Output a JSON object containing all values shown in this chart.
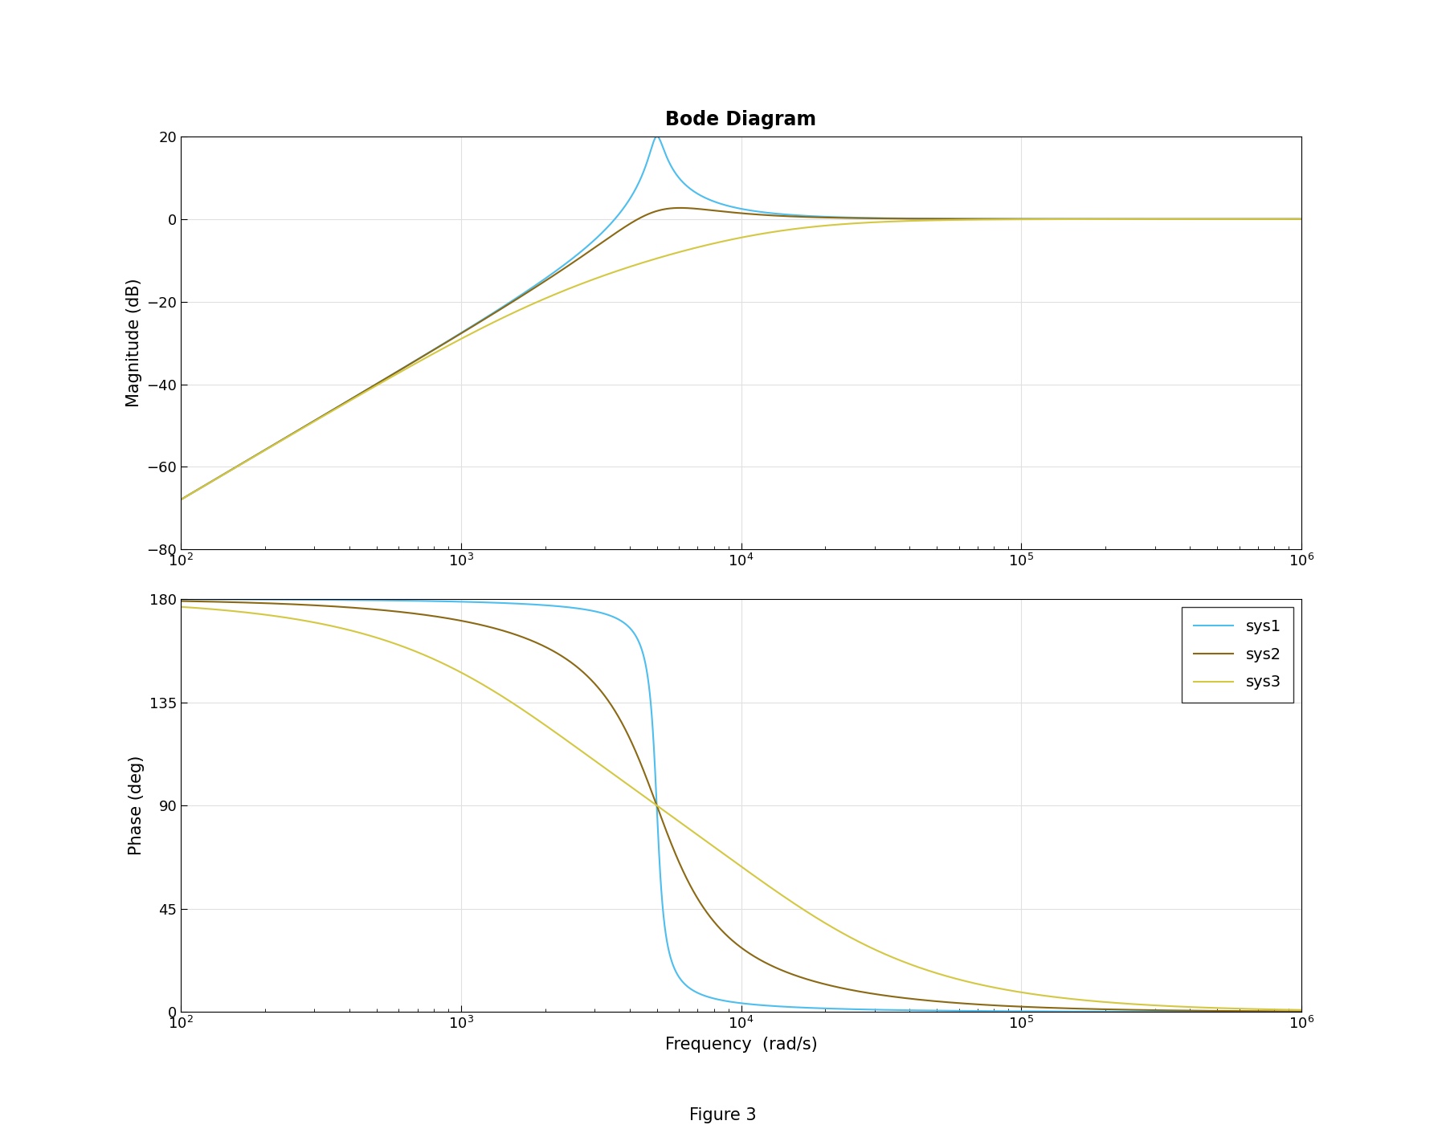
{
  "title": "Bode Diagram",
  "xlabel": "Frequency  (rad/s)",
  "ylabel_mag": "Magnitude (dB)",
  "ylabel_phase": "Phase (deg)",
  "figure_label": "Figure 3",
  "freq_range": [
    100,
    1000000
  ],
  "mag_ylim": [
    -80,
    20
  ],
  "phase_ylim": [
    0,
    180
  ],
  "mag_yticks": [
    -80,
    -60,
    -40,
    -20,
    0,
    20
  ],
  "phase_yticks": [
    0,
    45,
    90,
    135,
    180
  ],
  "systems": [
    {
      "label": "sys1",
      "wn": 5000,
      "zeta": 0.05,
      "color": "#4DBEEE"
    },
    {
      "label": "sys2",
      "wn": 5000,
      "zeta": 0.4,
      "color": "#8B6914"
    },
    {
      "label": "sys3",
      "wn": 5000,
      "zeta": 1.5,
      "color": "#D4C843"
    }
  ],
  "legend_loc": "upper right",
  "background_color": "#ffffff",
  "grid_color": "#e0e0e0",
  "linewidth": 1.5
}
